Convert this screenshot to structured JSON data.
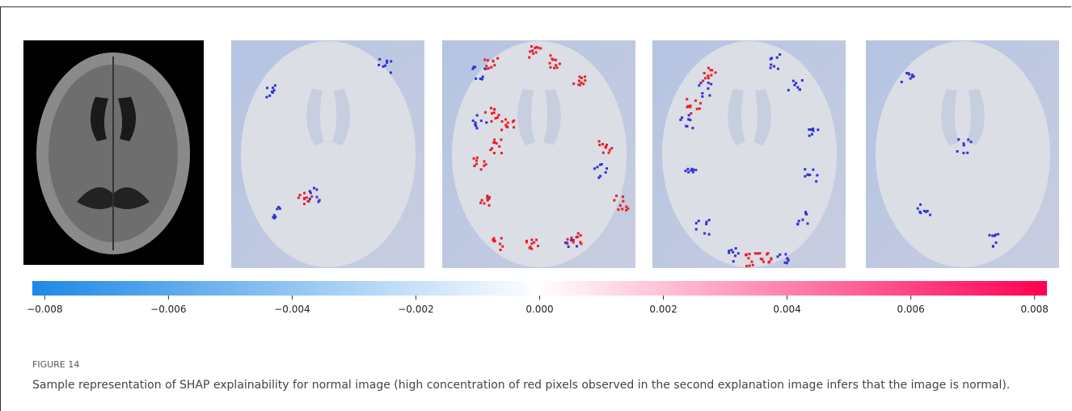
{
  "colorbar": {
    "lim": [
      -0.0082,
      0.0082
    ],
    "ticks": [
      {
        "value": -0.008,
        "label": "−0.008"
      },
      {
        "value": -0.006,
        "label": "−0.006"
      },
      {
        "value": -0.004,
        "label": "−0.004"
      },
      {
        "value": -0.002,
        "label": "−0.002"
      },
      {
        "value": 0,
        "label": "0.000"
      },
      {
        "value": 0.002,
        "label": "0.002"
      },
      {
        "value": 0.004,
        "label": "0.004"
      },
      {
        "value": 0.006,
        "label": "0.006"
      },
      {
        "value": 0.008,
        "label": "0.008"
      }
    ],
    "colors": [
      "#1e88e5",
      "#ffffff",
      "#ff0051"
    ]
  },
  "figure": {
    "label": "FIGURE 14",
    "caption": "Sample representation of SHAP explainability for normal image (high concentration of red pixels observed in the second explanation image infers that the image is normal)."
  }
}
